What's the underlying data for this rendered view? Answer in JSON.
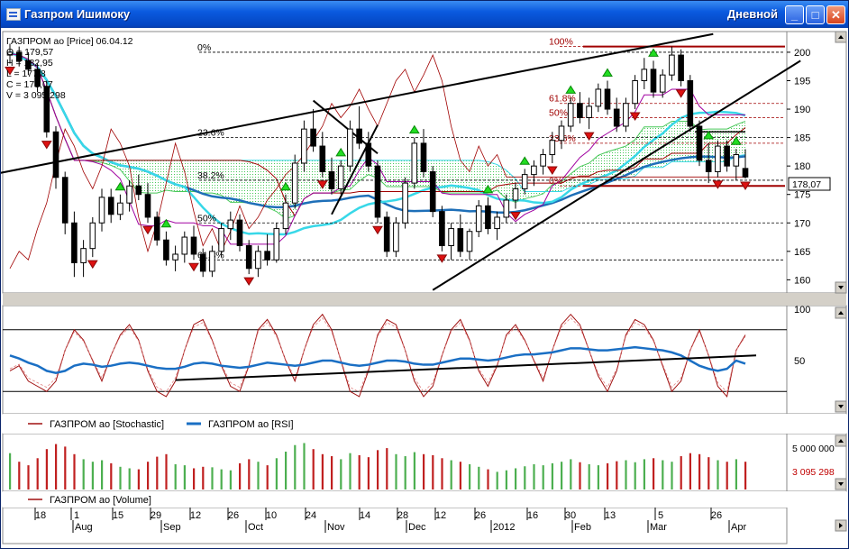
{
  "window": {
    "title": "Газпром Ишимоку",
    "period": "Дневной",
    "minimize_glyph": "_",
    "maximize_glyph": "□",
    "close_glyph": "✕",
    "icon": "chart-window-icon"
  },
  "price_info": {
    "header": "ГАЗПРОМ ао [Price] 06.04.12",
    "open": "O = 179,57",
    "high": "H = 182,95",
    "low": "L = 177,8",
    "close": "C = 178,07",
    "volume": "V = 3 095 298"
  },
  "colors": {
    "bg": "#ffffff",
    "price_red": "#a00000",
    "kijun": "#0000a0",
    "tenkan": "#a000a0",
    "ma_long": "#1e6fb8",
    "ma_short": "#38d8e8",
    "kumo_border": "#49c85a",
    "fib": "#a00000",
    "stoch": "#a01010",
    "rsi": "#1a6fc4",
    "vol_up": "#4caf50",
    "vol_down": "#c02020",
    "signal_up": "#22dd22",
    "signal_down": "#dd1111"
  },
  "chart_data": [
    {
      "type": "candlestick",
      "series_name": "ГАЗПРОМ ао [Price]",
      "ylim": [
        158,
        203
      ],
      "y_ticks": [
        160,
        165,
        170,
        175,
        180,
        185,
        190,
        195,
        200
      ],
      "last_value": "178,07",
      "candles": [
        [
          199.5,
          201.5,
          198.0,
          200.0
        ],
        [
          200.0,
          201.0,
          197.5,
          198.5
        ],
        [
          198.5,
          200.0,
          196.0,
          197.0
        ],
        [
          197.0,
          198.0,
          193.0,
          194.0
        ],
        [
          194.0,
          195.0,
          185.0,
          186.0
        ],
        [
          186.0,
          187.0,
          176.0,
          178.0
        ],
        [
          178.0,
          179.0,
          168.0,
          170.0
        ],
        [
          170.0,
          172.0,
          160.5,
          163.0
        ],
        [
          163.0,
          167.0,
          160.5,
          165.5
        ],
        [
          165.5,
          171.0,
          164.0,
          170.0
        ],
        [
          170.0,
          176.0,
          168.5,
          174.5
        ],
        [
          174.5,
          176.0,
          170.0,
          171.5
        ],
        [
          171.5,
          175.0,
          170.5,
          173.5
        ],
        [
          173.5,
          177.5,
          172.0,
          176.5
        ],
        [
          176.5,
          178.5,
          174.0,
          175.0
        ],
        [
          175.0,
          177.0,
          170.0,
          171.0
        ],
        [
          171.0,
          172.0,
          166.0,
          167.0
        ],
        [
          167.0,
          168.5,
          162.5,
          163.5
        ],
        [
          163.5,
          166.0,
          161.5,
          164.5
        ],
        [
          164.5,
          168.5,
          163.0,
          167.5
        ],
        [
          167.5,
          169.5,
          163.5,
          164.5
        ],
        [
          164.5,
          165.5,
          160.5,
          161.5
        ],
        [
          161.5,
          166.0,
          160.5,
          165.0
        ],
        [
          165.0,
          170.0,
          164.0,
          169.0
        ],
        [
          169.0,
          172.0,
          167.0,
          170.5
        ],
        [
          170.5,
          171.5,
          165.0,
          166.0
        ],
        [
          166.0,
          167.0,
          161.0,
          162.0
        ],
        [
          162.0,
          166.0,
          160.5,
          165.0
        ],
        [
          165.0,
          168.0,
          162.5,
          163.5
        ],
        [
          163.5,
          170.0,
          163.0,
          169.0
        ],
        [
          169.0,
          175.0,
          168.0,
          173.5
        ],
        [
          173.5,
          182.0,
          172.5,
          180.5
        ],
        [
          180.5,
          188.0,
          179.0,
          186.5
        ],
        [
          186.5,
          190.0,
          182.5,
          183.5
        ],
        [
          183.5,
          186.0,
          178.0,
          179.0
        ],
        [
          179.0,
          181.5,
          175.0,
          176.0
        ],
        [
          176.0,
          181.0,
          175.0,
          180.0
        ],
        [
          180.0,
          188.0,
          179.0,
          186.5
        ],
        [
          186.5,
          190.5,
          183.0,
          184.0
        ],
        [
          184.0,
          186.0,
          179.0,
          180.0
        ],
        [
          180.0,
          181.0,
          170.0,
          171.0
        ],
        [
          171.0,
          172.0,
          164.0,
          165.0
        ],
        [
          165.0,
          171.0,
          164.0,
          170.0
        ],
        [
          170.0,
          178.0,
          169.0,
          177.0
        ],
        [
          177.0,
          185.0,
          176.0,
          184.0
        ],
        [
          184.0,
          186.5,
          178.0,
          179.0
        ],
        [
          179.0,
          180.0,
          171.0,
          172.0
        ],
        [
          172.0,
          173.0,
          165.0,
          166.0
        ],
        [
          166.0,
          170.0,
          163.5,
          169.0
        ],
        [
          169.0,
          171.5,
          164.0,
          165.0
        ],
        [
          165.0,
          169.0,
          163.5,
          168.5
        ],
        [
          168.5,
          174.0,
          167.5,
          173.0
        ],
        [
          173.0,
          174.5,
          168.0,
          169.0
        ],
        [
          169.0,
          172.0,
          167.0,
          171.0
        ],
        [
          171.0,
          175.0,
          170.0,
          174.0
        ],
        [
          174.0,
          177.0,
          172.5,
          176.0
        ],
        [
          176.0,
          179.5,
          175.0,
          178.5
        ],
        [
          178.5,
          181.0,
          176.5,
          180.0
        ],
        [
          180.0,
          183.0,
          178.5,
          182.0
        ],
        [
          182.0,
          186.0,
          180.5,
          184.5
        ],
        [
          184.5,
          188.0,
          183.0,
          187.0
        ],
        [
          187.0,
          192.0,
          186.0,
          191.0
        ],
        [
          191.0,
          193.0,
          187.5,
          188.5
        ],
        [
          188.5,
          192.0,
          186.5,
          190.5
        ],
        [
          190.5,
          194.5,
          189.5,
          193.5
        ],
        [
          193.5,
          195.0,
          189.0,
          190.0
        ],
        [
          190.0,
          192.0,
          186.0,
          187.0
        ],
        [
          187.0,
          192.0,
          186.0,
          191.0
        ],
        [
          191.0,
          196.0,
          190.0,
          195.0
        ],
        [
          195.0,
          199.0,
          193.5,
          197.0
        ],
        [
          197.0,
          198.5,
          192.0,
          193.0
        ],
        [
          193.0,
          197.0,
          192.0,
          196.0
        ],
        [
          196.0,
          201.0,
          195.0,
          199.5
        ],
        [
          199.5,
          200.5,
          194.0,
          195.0
        ],
        [
          195.0,
          196.0,
          186.0,
          187.0
        ],
        [
          187.0,
          188.0,
          180.0,
          181.0
        ],
        [
          181.0,
          184.0,
          177.0,
          179.0
        ],
        [
          179.0,
          184.5,
          178.0,
          183.5
        ],
        [
          183.5,
          184.5,
          179.0,
          180.0
        ],
        [
          180.0,
          183.0,
          177.5,
          182.0
        ],
        [
          179.57,
          182.95,
          177.8,
          178.07
        ]
      ],
      "signals_up": [
        12,
        17,
        30,
        36,
        44,
        52,
        56,
        61,
        65,
        70,
        76,
        79
      ],
      "signals_down": [
        0,
        4,
        9,
        15,
        20,
        26,
        34,
        40,
        47,
        55,
        59,
        63,
        68,
        73,
        77,
        80
      ],
      "fibonacci": [
        {
          "label": "0%",
          "level": 200.0
        },
        {
          "label": "23.6%",
          "level": 185.0
        },
        {
          "label": "38.2%",
          "level": 177.5
        },
        {
          "label": "50%",
          "level": 170.0
        },
        {
          "label": "61.8%",
          "level": 163.5
        },
        {
          "label": "100%",
          "level": 201.0
        },
        {
          "label": "61.8%",
          "level": 191.0
        },
        {
          "label": "50%",
          "level": 188.5
        },
        {
          "label": "23.6%",
          "level": 184.0
        },
        {
          "label": "0%",
          "level": 176.5
        }
      ]
    },
    {
      "type": "line",
      "series": [
        {
          "name": "ГАЗПРОМ ао [Stochastic]",
          "values": [
            40,
            45,
            30,
            25,
            20,
            30,
            60,
            80,
            70,
            50,
            30,
            55,
            75,
            85,
            70,
            40,
            20,
            15,
            30,
            60,
            85,
            90,
            70,
            45,
            25,
            20,
            45,
            80,
            90,
            75,
            50,
            30,
            60,
            85,
            95,
            80,
            50,
            20,
            15,
            40,
            75,
            90,
            85,
            60,
            30,
            15,
            25,
            55,
            80,
            90,
            70,
            40,
            25,
            45,
            75,
            85,
            70,
            50,
            30,
            60,
            85,
            95,
            85,
            60,
            35,
            20,
            40,
            75,
            90,
            85,
            70,
            45,
            20,
            30,
            60,
            80,
            55,
            25,
            15,
            60,
            75
          ]
        },
        {
          "name": "ГАЗПРОМ ао [RSI]",
          "values": [
            55,
            52,
            48,
            45,
            40,
            38,
            40,
            45,
            47,
            46,
            44,
            45,
            47,
            48,
            47,
            45,
            43,
            42,
            42,
            44,
            47,
            48,
            47,
            45,
            44,
            43,
            44,
            46,
            48,
            47,
            46,
            45,
            46,
            48,
            50,
            50,
            48,
            46,
            45,
            46,
            48,
            50,
            50,
            49,
            47,
            46,
            46,
            48,
            50,
            52,
            52,
            51,
            50,
            51,
            53,
            55,
            56,
            56,
            57,
            58,
            60,
            62,
            62,
            61,
            60,
            60,
            61,
            62,
            63,
            62,
            61,
            60,
            58,
            55,
            50,
            45,
            42,
            40,
            42,
            50,
            47
          ]
        }
      ],
      "ylim": [
        0,
        100
      ],
      "y_ticks": [
        100,
        50
      ]
    },
    {
      "type": "bar",
      "series": [
        {
          "name": "ГАЗПРОМ ао [Volume]",
          "last_value": "3 095 298",
          "values": [
            0.72,
            0.55,
            0.48,
            0.62,
            0.8,
            0.9,
            0.85,
            0.7,
            0.6,
            0.55,
            0.58,
            0.52,
            0.45,
            0.42,
            0.4,
            0.55,
            0.65,
            0.7,
            0.5,
            0.48,
            0.42,
            0.45,
            0.44,
            0.4,
            0.38,
            0.52,
            0.6,
            0.55,
            0.48,
            0.62,
            0.75,
            0.88,
            0.92,
            0.8,
            0.7,
            0.66,
            0.6,
            0.72,
            0.68,
            0.64,
            0.78,
            0.82,
            0.7,
            0.66,
            0.74,
            0.7,
            0.68,
            0.62,
            0.58,
            0.55,
            0.5,
            0.45,
            0.4,
            0.35,
            0.38,
            0.42,
            0.46,
            0.5,
            0.48,
            0.52,
            0.55,
            0.6,
            0.54,
            0.5,
            0.48,
            0.52,
            0.56,
            0.58,
            0.54,
            0.6,
            0.62,
            0.58,
            0.55,
            0.66,
            0.72,
            0.7,
            0.64,
            0.58,
            0.55,
            0.6,
            0.55
          ]
        }
      ],
      "y_ticks": [
        "5 000 000"
      ]
    }
  ],
  "x_axis": {
    "days": [
      "18",
      "1",
      "15",
      "29",
      "12",
      "26",
      "10",
      "24",
      "14",
      "28",
      "12",
      "26",
      "16",
      "30",
      "13",
      "5",
      "26"
    ],
    "months": [
      "Aug",
      "Sep",
      "Oct",
      "Nov",
      "Dec",
      "2012",
      "Feb",
      "Mar",
      "Apr"
    ]
  }
}
